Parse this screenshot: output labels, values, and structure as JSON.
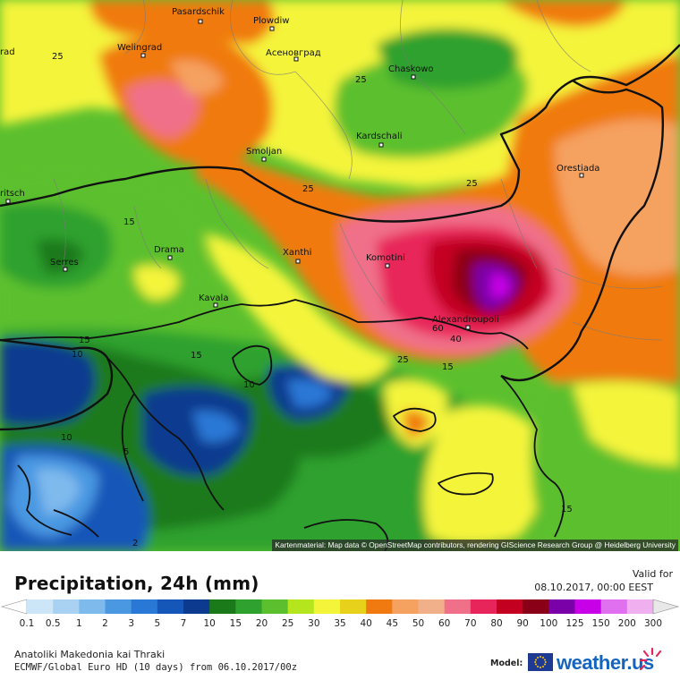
{
  "map": {
    "cities": [
      {
        "name": "Pasardschik"
      },
      {
        "name": "Plowdiw"
      },
      {
        "name": "Асеновград"
      },
      {
        "name": "Welingrad"
      },
      {
        "name": "Chaskowo"
      },
      {
        "name": "Smoljan"
      },
      {
        "name": "Kardschali"
      },
      {
        "name": "Orestiada"
      },
      {
        "name": "Komotini"
      },
      {
        "name": "Xanthi"
      },
      {
        "name": "Drama"
      },
      {
        "name": "Serres"
      },
      {
        "name": "Kavala"
      },
      {
        "name": "Alexandroupoli"
      },
      {
        "name": "rad"
      },
      {
        "name": "ritsch"
      }
    ],
    "isoline_labels": [
      "25",
      "25",
      "25",
      "25",
      "15",
      "15",
      "15",
      "10",
      "10",
      "10",
      "60",
      "40",
      "25",
      "15",
      "15",
      "2",
      "5"
    ],
    "attribution": "Kartenmaterial: Map data © OpenStreetMap contributors, rendering GIScience Research Group @ Heidelberg University"
  },
  "legend": {
    "title": "Precipitation, 24h (mm)",
    "valid_for_label": "Valid for",
    "valid_for_value": "08.10.2017, 00:00 EEST",
    "scale": {
      "values": [
        "0.1",
        "0.5",
        "1",
        "2",
        "3",
        "5",
        "7",
        "10",
        "15",
        "20",
        "25",
        "30",
        "35",
        "40",
        "45",
        "50",
        "60",
        "70",
        "80",
        "90",
        "100",
        "125",
        "150",
        "200",
        "300"
      ],
      "colors": [
        "#cde6f7",
        "#a9d2f2",
        "#7fbaed",
        "#4a98e2",
        "#2a78d6",
        "#1457b8",
        "#0b3a8f",
        "#1a7a1a",
        "#2ea12e",
        "#5cc02e",
        "#b5e61d",
        "#f4f43a",
        "#e8d11a",
        "#f07a10",
        "#f5a160",
        "#f2b08a",
        "#f0708a",
        "#e8255a",
        "#c40020",
        "#8a0016",
        "#7a00a8",
        "#c800e8",
        "#e070f0",
        "#f0b0f0",
        "#f4d8f4",
        "#e8e8e8"
      ],
      "colors_note": ""
    },
    "region": "Anatoliki Makedonia kai Thraki",
    "model_run": "ECMWF/Global Euro HD (10 days) from 06.10.2017/00z",
    "model_label": "Model:",
    "brand": "weather.us"
  }
}
